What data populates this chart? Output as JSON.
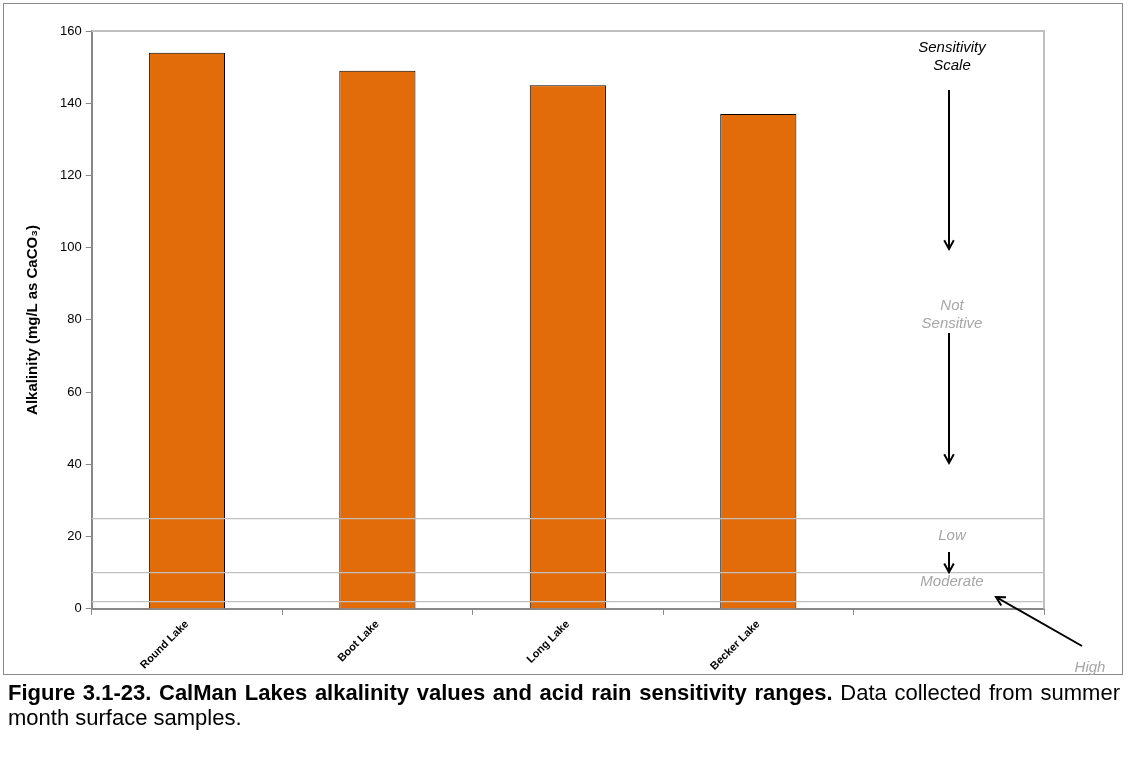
{
  "chart_data": {
    "type": "bar",
    "title": "Figure 3.1-23.  CalMan Lakes alkalinity values and acid rain sensitivity ranges.",
    "ylabel": "Alkalinity (mg/L as CaCO₃)",
    "categories": [
      "Round Lake",
      "Boot Lake",
      "Long Lake",
      "Becker Lake",
      null
    ],
    "values": [
      154,
      149,
      145,
      137,
      null
    ],
    "color": "#e36c0a",
    "ylim": [
      0,
      160
    ],
    "yticks": [
      0,
      20,
      40,
      60,
      80,
      100,
      120,
      140,
      160
    ],
    "grid": false,
    "legend": false,
    "ref_lines": [
      {
        "axis": "y",
        "value": 25,
        "color": "#c0c0c0"
      },
      {
        "axis": "y",
        "value": 10,
        "color": "#c0c0c0"
      },
      {
        "axis": "y",
        "value": 2,
        "color": "#c0c0c0"
      }
    ],
    "annotations": [
      "Sensitivity Scale",
      "Not Sensitive",
      "Low",
      "Moderate",
      "High",
      "Data collected from summer month surface samples."
    ]
  }
}
